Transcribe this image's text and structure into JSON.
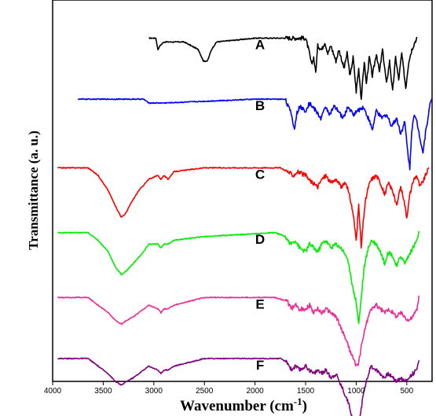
{
  "chart_data": {
    "type": "line",
    "title": "",
    "xlabel_main": "Wavenumber (cm",
    "xlabel_sup": "-1",
    "xlabel_close": ")",
    "ylabel": "Transmittance (a. u.)",
    "xlim": [
      4000,
      250
    ],
    "x_reversed": true,
    "x_ticks": [
      4000,
      3500,
      3000,
      2500,
      2000,
      1500,
      1000,
      500
    ],
    "x_tick_labels": [
      "4000",
      "3500",
      "3000",
      "2500",
      "2000",
      "1500",
      "1000",
      "500"
    ],
    "ylim": [
      0,
      100
    ],
    "y_ticks_shown": false,
    "grid": false,
    "legend": "none",
    "series": [
      {
        "name": "A",
        "color": "#000000",
        "x_range": [
          3050,
          400
        ],
        "offset": 90,
        "keypoints": [
          [
            3050,
            0
          ],
          [
            2980,
            0
          ],
          [
            2960,
            -3
          ],
          [
            2940,
            -2
          ],
          [
            2900,
            -1
          ],
          [
            2860,
            -1
          ],
          [
            2700,
            -1
          ],
          [
            2560,
            -3
          ],
          [
            2510,
            -6
          ],
          [
            2470,
            -6
          ],
          [
            2430,
            -3
          ],
          [
            2380,
            -1
          ],
          [
            2000,
            0
          ],
          [
            1500,
            0
          ],
          [
            1470,
            -3
          ],
          [
            1440,
            -7
          ],
          [
            1420,
            -5
          ],
          [
            1400,
            -9
          ],
          [
            1380,
            -2
          ],
          [
            1340,
            -3
          ],
          [
            1310,
            -1
          ],
          [
            1280,
            -4
          ],
          [
            1250,
            -2
          ],
          [
            1200,
            -6
          ],
          [
            1170,
            -3
          ],
          [
            1120,
            -8
          ],
          [
            1090,
            -4
          ],
          [
            1060,
            -10
          ],
          [
            1030,
            -5
          ],
          [
            1000,
            -14
          ],
          [
            975,
            -8
          ],
          [
            950,
            -16
          ],
          [
            920,
            -6
          ],
          [
            900,
            -12
          ],
          [
            870,
            -5
          ],
          [
            840,
            -10
          ],
          [
            800,
            -4
          ],
          [
            770,
            -9
          ],
          [
            740,
            -3
          ],
          [
            700,
            -12
          ],
          [
            670,
            -6
          ],
          [
            640,
            -14
          ],
          [
            610,
            -5
          ],
          [
            580,
            -11
          ],
          [
            550,
            -4
          ],
          [
            510,
            -13
          ],
          [
            480,
            -6
          ],
          [
            450,
            -3
          ],
          [
            420,
            -1
          ],
          [
            400,
            0
          ]
        ],
        "label": "A"
      },
      {
        "name": "B",
        "color": "#0000ff",
        "x_range": [
          3750,
          250
        ],
        "offset": 74,
        "keypoints": [
          [
            3750,
            0
          ],
          [
            3100,
            0
          ],
          [
            3050,
            -1
          ],
          [
            3000,
            -1
          ],
          [
            2900,
            -1
          ],
          [
            2000,
            0
          ],
          [
            1700,
            0
          ],
          [
            1640,
            -4
          ],
          [
            1610,
            -8
          ],
          [
            1590,
            -4
          ],
          [
            1560,
            -2
          ],
          [
            1500,
            -3
          ],
          [
            1460,
            -1
          ],
          [
            1400,
            -3
          ],
          [
            1350,
            -5
          ],
          [
            1300,
            -2
          ],
          [
            1260,
            -4
          ],
          [
            1220,
            -2
          ],
          [
            1180,
            -3
          ],
          [
            1130,
            -5
          ],
          [
            1080,
            -2
          ],
          [
            1030,
            -4
          ],
          [
            980,
            -3
          ],
          [
            930,
            -2
          ],
          [
            880,
            -5
          ],
          [
            840,
            -8
          ],
          [
            800,
            -3
          ],
          [
            750,
            -5
          ],
          [
            700,
            -4
          ],
          [
            650,
            -7
          ],
          [
            600,
            -5
          ],
          [
            560,
            -9
          ],
          [
            520,
            -6
          ],
          [
            490,
            -14
          ],
          [
            470,
            -18
          ],
          [
            450,
            -8
          ],
          [
            430,
            -4
          ],
          [
            400,
            -6
          ],
          [
            370,
            -10
          ],
          [
            340,
            -14
          ],
          [
            310,
            -8
          ],
          [
            280,
            -3
          ],
          [
            260,
            0
          ],
          [
            250,
            0
          ]
        ],
        "label": "B"
      },
      {
        "name": "C",
        "color": "#ff0000",
        "x_range": [
          3950,
          280
        ],
        "offset": 56,
        "keypoints": [
          [
            3950,
            0
          ],
          [
            3650,
            0
          ],
          [
            3550,
            -2
          ],
          [
            3450,
            -6
          ],
          [
            3380,
            -10
          ],
          [
            3320,
            -13
          ],
          [
            3280,
            -12
          ],
          [
            3220,
            -9
          ],
          [
            3150,
            -6
          ],
          [
            3050,
            -3
          ],
          [
            2960,
            -2
          ],
          [
            2930,
            -3
          ],
          [
            2900,
            -2
          ],
          [
            2860,
            -3
          ],
          [
            2800,
            -1
          ],
          [
            2500,
            0
          ],
          [
            1750,
            0
          ],
          [
            1680,
            -1
          ],
          [
            1620,
            -2
          ],
          [
            1580,
            -1
          ],
          [
            1500,
            -2
          ],
          [
            1470,
            -3
          ],
          [
            1430,
            -4
          ],
          [
            1380,
            -5
          ],
          [
            1340,
            -3
          ],
          [
            1300,
            -2
          ],
          [
            1250,
            -4
          ],
          [
            1200,
            -3
          ],
          [
            1150,
            -5
          ],
          [
            1100,
            -4
          ],
          [
            1060,
            -8
          ],
          [
            1030,
            -12
          ],
          [
            1000,
            -19
          ],
          [
            975,
            -10
          ],
          [
            950,
            -21
          ],
          [
            930,
            -14
          ],
          [
            910,
            -9
          ],
          [
            880,
            -5
          ],
          [
            850,
            -3
          ],
          [
            800,
            -2
          ],
          [
            760,
            -4
          ],
          [
            720,
            -7
          ],
          [
            680,
            -4
          ],
          [
            640,
            -6
          ],
          [
            600,
            -10
          ],
          [
            560,
            -5
          ],
          [
            530,
            -8
          ],
          [
            500,
            -13
          ],
          [
            470,
            -7
          ],
          [
            430,
            -3
          ],
          [
            400,
            -2
          ],
          [
            370,
            -5
          ],
          [
            330,
            -3
          ],
          [
            300,
            -1
          ],
          [
            280,
            0
          ]
        ],
        "label": "C"
      },
      {
        "name": "D",
        "color": "#00ee00",
        "x_range": [
          3950,
          380
        ],
        "offset": 39,
        "keypoints": [
          [
            3950,
            0
          ],
          [
            3650,
            0
          ],
          [
            3550,
            -2
          ],
          [
            3450,
            -5
          ],
          [
            3380,
            -9
          ],
          [
            3320,
            -11
          ],
          [
            3270,
            -10
          ],
          [
            3200,
            -8
          ],
          [
            3100,
            -5
          ],
          [
            3050,
            -3
          ],
          [
            2960,
            -3
          ],
          [
            2930,
            -4
          ],
          [
            2900,
            -3
          ],
          [
            2860,
            -3
          ],
          [
            2800,
            -2
          ],
          [
            2500,
            -1
          ],
          [
            1800,
            0
          ],
          [
            1700,
            -1
          ],
          [
            1650,
            -3
          ],
          [
            1600,
            -2
          ],
          [
            1560,
            -4
          ],
          [
            1500,
            -5
          ],
          [
            1460,
            -3
          ],
          [
            1420,
            -4
          ],
          [
            1380,
            -5
          ],
          [
            1340,
            -3
          ],
          [
            1300,
            -2
          ],
          [
            1250,
            -4
          ],
          [
            1200,
            -3
          ],
          [
            1150,
            -4
          ],
          [
            1100,
            -6
          ],
          [
            1060,
            -10
          ],
          [
            1030,
            -15
          ],
          [
            1000,
            -18
          ],
          [
            975,
            -24
          ],
          [
            950,
            -17
          ],
          [
            920,
            -9
          ],
          [
            880,
            -4
          ],
          [
            850,
            -2
          ],
          [
            800,
            -3
          ],
          [
            760,
            -5
          ],
          [
            720,
            -8
          ],
          [
            680,
            -5
          ],
          [
            640,
            -6
          ],
          [
            600,
            -9
          ],
          [
            560,
            -6
          ],
          [
            520,
            -8
          ],
          [
            480,
            -6
          ],
          [
            440,
            -4
          ],
          [
            400,
            -2
          ],
          [
            380,
            0
          ]
        ],
        "label": "D"
      },
      {
        "name": "E",
        "color": "#ee2d95",
        "x_range": [
          3950,
          380
        ],
        "offset": 22,
        "keypoints": [
          [
            3950,
            0
          ],
          [
            3650,
            0
          ],
          [
            3550,
            -2
          ],
          [
            3450,
            -4
          ],
          [
            3380,
            -6
          ],
          [
            3320,
            -7
          ],
          [
            3270,
            -6
          ],
          [
            3200,
            -5
          ],
          [
            3100,
            -3
          ],
          [
            3050,
            -2
          ],
          [
            2960,
            -3
          ],
          [
            2930,
            -4
          ],
          [
            2900,
            -3
          ],
          [
            2860,
            -3
          ],
          [
            2800,
            -2
          ],
          [
            2500,
            0
          ],
          [
            1800,
            0
          ],
          [
            1680,
            -1
          ],
          [
            1640,
            -3
          ],
          [
            1600,
            -2
          ],
          [
            1560,
            -3
          ],
          [
            1500,
            -3
          ],
          [
            1460,
            -2
          ],
          [
            1420,
            -4
          ],
          [
            1380,
            -3
          ],
          [
            1340,
            -4
          ],
          [
            1300,
            -3
          ],
          [
            1250,
            -4
          ],
          [
            1200,
            -5
          ],
          [
            1150,
            -8
          ],
          [
            1100,
            -11
          ],
          [
            1060,
            -14
          ],
          [
            1030,
            -16
          ],
          [
            1000,
            -18
          ],
          [
            975,
            -17
          ],
          [
            950,
            -13
          ],
          [
            920,
            -9
          ],
          [
            880,
            -5
          ],
          [
            850,
            -3
          ],
          [
            800,
            -2
          ],
          [
            760,
            -3
          ],
          [
            720,
            -4
          ],
          [
            680,
            -3
          ],
          [
            640,
            -4
          ],
          [
            600,
            -5
          ],
          [
            560,
            -4
          ],
          [
            520,
            -5
          ],
          [
            480,
            -6
          ],
          [
            440,
            -5
          ],
          [
            400,
            -3
          ],
          [
            380,
            0
          ]
        ],
        "label": "E"
      },
      {
        "name": "F",
        "color": "#800080",
        "x_range": [
          3950,
          380
        ],
        "offset": 6,
        "keypoints": [
          [
            3950,
            0
          ],
          [
            3650,
            0
          ],
          [
            3550,
            -2
          ],
          [
            3450,
            -4
          ],
          [
            3380,
            -6
          ],
          [
            3320,
            -7
          ],
          [
            3270,
            -6
          ],
          [
            3200,
            -5
          ],
          [
            3100,
            -3
          ],
          [
            3050,
            -2
          ],
          [
            2960,
            -3
          ],
          [
            2930,
            -4
          ],
          [
            2900,
            -3
          ],
          [
            2860,
            -3
          ],
          [
            2800,
            -2
          ],
          [
            2500,
            0
          ],
          [
            1750,
            0
          ],
          [
            1680,
            -1
          ],
          [
            1640,
            -3
          ],
          [
            1600,
            -2
          ],
          [
            1560,
            -3
          ],
          [
            1500,
            -2
          ],
          [
            1460,
            -3
          ],
          [
            1420,
            -4
          ],
          [
            1380,
            -3
          ],
          [
            1340,
            -4
          ],
          [
            1300,
            -3
          ],
          [
            1250,
            -5
          ],
          [
            1200,
            -4
          ],
          [
            1150,
            -7
          ],
          [
            1100,
            -10
          ],
          [
            1060,
            -13
          ],
          [
            1030,
            -17
          ],
          [
            1000,
            -20
          ],
          [
            975,
            -18
          ],
          [
            950,
            -13
          ],
          [
            920,
            -8
          ],
          [
            880,
            -4
          ],
          [
            850,
            -2
          ],
          [
            800,
            -3
          ],
          [
            760,
            -4
          ],
          [
            720,
            -5
          ],
          [
            680,
            -4
          ],
          [
            640,
            -5
          ],
          [
            600,
            -6
          ],
          [
            560,
            -5
          ],
          [
            520,
            -6
          ],
          [
            480,
            -5
          ],
          [
            440,
            -4
          ],
          [
            400,
            -3
          ],
          [
            380,
            0
          ]
        ],
        "label": "F"
      }
    ]
  }
}
